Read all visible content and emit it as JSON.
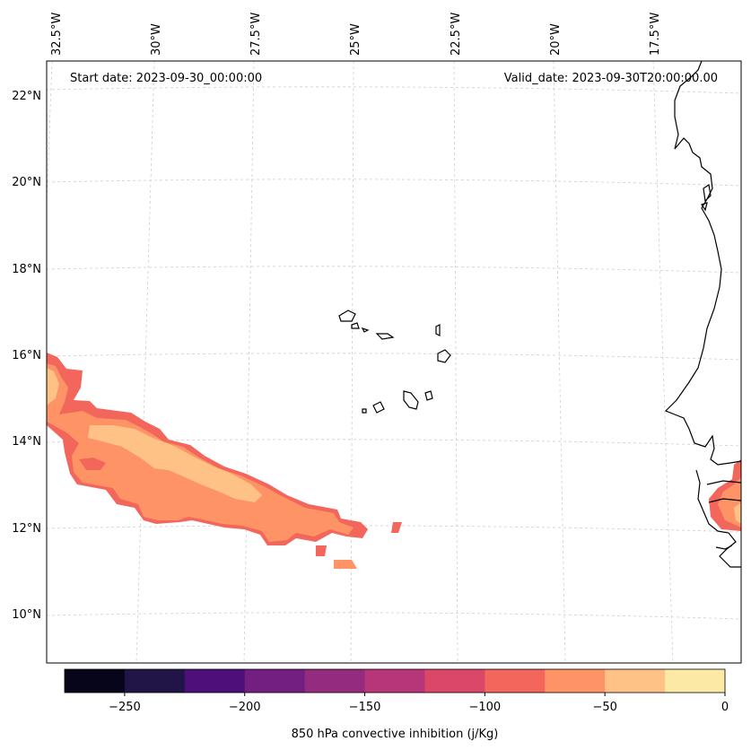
{
  "map": {
    "start_date_label": "Start date: 2023-09-30_00:00:00",
    "valid_date_label": "Valid_date: 2023-09-30T20:00:00.00",
    "lon_labels": [
      "32.5°W",
      "30°W",
      "27.5°W",
      "25°W",
      "22.5°W",
      "20°W",
      "17.5°W"
    ],
    "lat_labels": [
      "22°N",
      "20°N",
      "18°N",
      "16°N",
      "14°N",
      "12°N",
      "10°N"
    ],
    "gridlines": true,
    "projection": "lambert-conformal-like",
    "extent_lon": [
      -33.0,
      -15.5
    ],
    "extent_lat": [
      8.9,
      22.8
    ]
  },
  "colorbar": {
    "label": "850 hPa convective inhibition (j/Kg)",
    "tick_labels": [
      "−250",
      "−200",
      "−150",
      "−100",
      "−50",
      "0"
    ],
    "ticks": [
      -250,
      -200,
      -150,
      -100,
      -50,
      0
    ],
    "range": [
      -275,
      0
    ],
    "bins": [
      -275,
      -250,
      -225,
      -200,
      -175,
      -150,
      -125,
      -100,
      -75,
      -50,
      -25,
      0
    ],
    "colors": [
      "#06051a",
      "#211548",
      "#4d0f79",
      "#721f81",
      "#942b7e",
      "#b7367a",
      "#db4769",
      "#f2665c",
      "#fe9366",
      "#fec287",
      "#fde9a6"
    ]
  }
}
